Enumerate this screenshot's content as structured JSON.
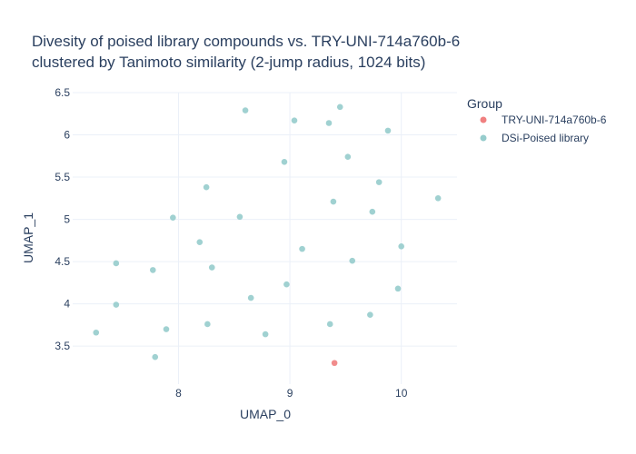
{
  "chart_data": {
    "type": "scatter",
    "title_line1": "Divesity of poised library compounds vs. TRY-UNI-714a760b-6",
    "title_line2": "clustered by Tanimoto similarity (2-jump radius, 1024 bits)",
    "xlabel": "UMAP_0",
    "ylabel": "UMAP_1",
    "xlim": [
      7.05,
      10.5
    ],
    "ylim": [
      3.05,
      6.5
    ],
    "xticks": [
      8,
      9,
      10
    ],
    "yticks": [
      3.5,
      4,
      4.5,
      5,
      5.5,
      6,
      6.5
    ],
    "grid": true,
    "legend": {
      "title": "Group",
      "placement": "top-right-outside",
      "entries": [
        {
          "label": "TRY-UNI-714a760b-6",
          "color": "#f08080"
        },
        {
          "label": "DSi-Poised library",
          "color": "#96cccc"
        }
      ]
    },
    "series": [
      {
        "name": "TRY-UNI-714a760b-6",
        "color": "#f08080",
        "points": [
          [
            9.4,
            3.3
          ]
        ]
      },
      {
        "name": "DSi-Poised library",
        "color": "#96cccc",
        "points": [
          [
            8.6,
            6.29
          ],
          [
            9.04,
            6.17
          ],
          [
            9.35,
            6.14
          ],
          [
            9.45,
            6.33
          ],
          [
            9.88,
            6.05
          ],
          [
            9.52,
            5.74
          ],
          [
            8.95,
            5.68
          ],
          [
            9.8,
            5.44
          ],
          [
            8.25,
            5.38
          ],
          [
            10.33,
            5.25
          ],
          [
            9.39,
            5.21
          ],
          [
            9.74,
            5.09
          ],
          [
            7.95,
            5.02
          ],
          [
            8.55,
            5.03
          ],
          [
            8.19,
            4.73
          ],
          [
            9.11,
            4.65
          ],
          [
            10.0,
            4.68
          ],
          [
            7.44,
            4.48
          ],
          [
            7.77,
            4.4
          ],
          [
            8.3,
            4.43
          ],
          [
            9.56,
            4.51
          ],
          [
            8.97,
            4.23
          ],
          [
            9.97,
            4.18
          ],
          [
            8.65,
            4.07
          ],
          [
            7.44,
            3.99
          ],
          [
            9.72,
            3.87
          ],
          [
            7.89,
            3.7
          ],
          [
            8.26,
            3.76
          ],
          [
            9.36,
            3.76
          ],
          [
            7.26,
            3.66
          ],
          [
            8.78,
            3.64
          ],
          [
            7.79,
            3.37
          ]
        ]
      }
    ]
  }
}
